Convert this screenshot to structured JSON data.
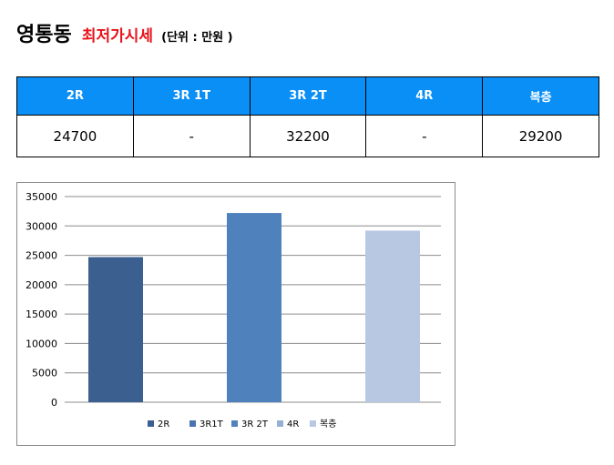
{
  "header": {
    "title": "영통동",
    "subtitle": "최저가시세",
    "unit": "(단위 : 만원 )"
  },
  "table": {
    "columns": [
      "2R",
      "3R 1T",
      "3R 2T",
      "4R",
      "복층"
    ],
    "values": [
      "24700",
      "-",
      "32200",
      "-",
      "29200"
    ]
  },
  "colors": {
    "table_header_bg": "#0a8ff7",
    "title_accent": "#e8141b",
    "series": [
      "#3b5f8f",
      "#4a74ad",
      "#4f81bd",
      "#95afd5",
      "#b9c8e2"
    ]
  },
  "chart_data": {
    "type": "bar",
    "title": "",
    "xlabel": "",
    "ylabel": "",
    "ylim": [
      0,
      35000
    ],
    "yticks": [
      0,
      5000,
      10000,
      15000,
      20000,
      25000,
      30000,
      35000
    ],
    "grid": true,
    "legend_position": "bottom",
    "series": [
      {
        "name": "2R",
        "value": 24700
      },
      {
        "name": "3R1T",
        "value": null
      },
      {
        "name": "3R 2T",
        "value": 32200
      },
      {
        "name": "4R",
        "value": null
      },
      {
        "name": "복층",
        "value": 29200
      }
    ]
  }
}
